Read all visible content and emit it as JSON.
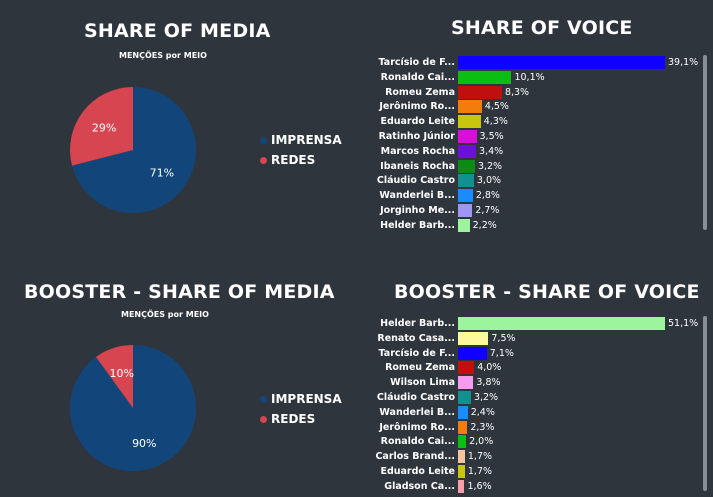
{
  "legend_items": [
    {
      "label": "IMPRENSA",
      "color": "#12467b"
    },
    {
      "label": "REDES",
      "color": "#d64550"
    }
  ],
  "chart_data": [
    {
      "type": "pie",
      "title": "SHARE OF MEDIA",
      "subtitle": "MENÇÕES por MEIO",
      "slices": [
        {
          "label": "IMPRENSA",
          "value": 71,
          "display": "71%",
          "color": "#12467b"
        },
        {
          "label": "REDES",
          "value": 29,
          "display": "29%",
          "color": "#d64550"
        }
      ]
    },
    {
      "type": "bar",
      "orientation": "horizontal",
      "title": "SHARE OF VOICE",
      "xlim": [
        0,
        39.1
      ],
      "bars": [
        {
          "label": "Tarcísio de F...",
          "value": 39.1,
          "display": "39,1%",
          "color": "#0f00ff"
        },
        {
          "label": "Ronaldo Cai...",
          "value": 10.1,
          "display": "10,1%",
          "color": "#0bbf12"
        },
        {
          "label": "Romeu Zema",
          "value": 8.3,
          "display": "8,3%",
          "color": "#c00f0f"
        },
        {
          "label": "Jerônimo Ro...",
          "value": 4.5,
          "display": "4,5%",
          "color": "#f47c0a"
        },
        {
          "label": "Eduardo Leite",
          "value": 4.3,
          "display": "4,3%",
          "color": "#c9c50d"
        },
        {
          "label": "Ratinho Júnior",
          "value": 3.5,
          "display": "3,5%",
          "color": "#d80fd8"
        },
        {
          "label": "Marcos Rocha",
          "value": 3.4,
          "display": "3,4%",
          "color": "#6b11d6"
        },
        {
          "label": "Ibaneis Rocha",
          "value": 3.2,
          "display": "3,2%",
          "color": "#0c8a14"
        },
        {
          "label": "Cláudio Castro",
          "value": 3.0,
          "display": "3,0%",
          "color": "#11908f"
        },
        {
          "label": "Wanderlei B...",
          "value": 2.8,
          "display": "2,8%",
          "color": "#1a8cff"
        },
        {
          "label": "Jorginho Me...",
          "value": 2.7,
          "display": "2,7%",
          "color": "#9d96f5"
        },
        {
          "label": "Helder Barb...",
          "value": 2.2,
          "display": "2,2%",
          "color": "#9cf59c"
        }
      ]
    },
    {
      "type": "pie",
      "title": "BOOSTER - SHARE OF MEDIA",
      "subtitle": "MENÇÕES por MEIO",
      "slices": [
        {
          "label": "IMPRENSA",
          "value": 90,
          "display": "90%",
          "color": "#12467b"
        },
        {
          "label": "REDES",
          "value": 10,
          "display": "10%",
          "color": "#d64550"
        }
      ]
    },
    {
      "type": "bar",
      "orientation": "horizontal",
      "title": "BOOSTER - SHARE OF VOICE",
      "xlim": [
        0,
        51.1
      ],
      "bars": [
        {
          "label": "Helder Barb...",
          "value": 51.1,
          "display": "51,1%",
          "color": "#9cf59c"
        },
        {
          "label": "Renato Casa...",
          "value": 7.5,
          "display": "7,5%",
          "color": "#fdfa9c"
        },
        {
          "label": "Tarcísio de F...",
          "value": 7.1,
          "display": "7,1%",
          "color": "#0f00ff"
        },
        {
          "label": "Romeu Zema",
          "value": 4.0,
          "display": "4,0%",
          "color": "#c00f0f"
        },
        {
          "label": "Wilson Lima",
          "value": 3.8,
          "display": "3,8%",
          "color": "#f59cf0"
        },
        {
          "label": "Cláudio Castro",
          "value": 3.2,
          "display": "3,2%",
          "color": "#11908f"
        },
        {
          "label": "Wanderlei B...",
          "value": 2.4,
          "display": "2,4%",
          "color": "#1a8cff"
        },
        {
          "label": "Jerônimo Ro...",
          "value": 2.3,
          "display": "2,3%",
          "color": "#f47c0a"
        },
        {
          "label": "Ronaldo Cai...",
          "value": 2.0,
          "display": "2,0%",
          "color": "#0bbf12"
        },
        {
          "label": "Carlos Brand...",
          "value": 1.7,
          "display": "1,7%",
          "color": "#f5c3a0"
        },
        {
          "label": "Eduardo Leite",
          "value": 1.7,
          "display": "1,7%",
          "color": "#c9c50d"
        },
        {
          "label": "Gladson Ca...",
          "value": 1.6,
          "display": "1,6%",
          "color": "#f5a0a8"
        }
      ]
    }
  ]
}
